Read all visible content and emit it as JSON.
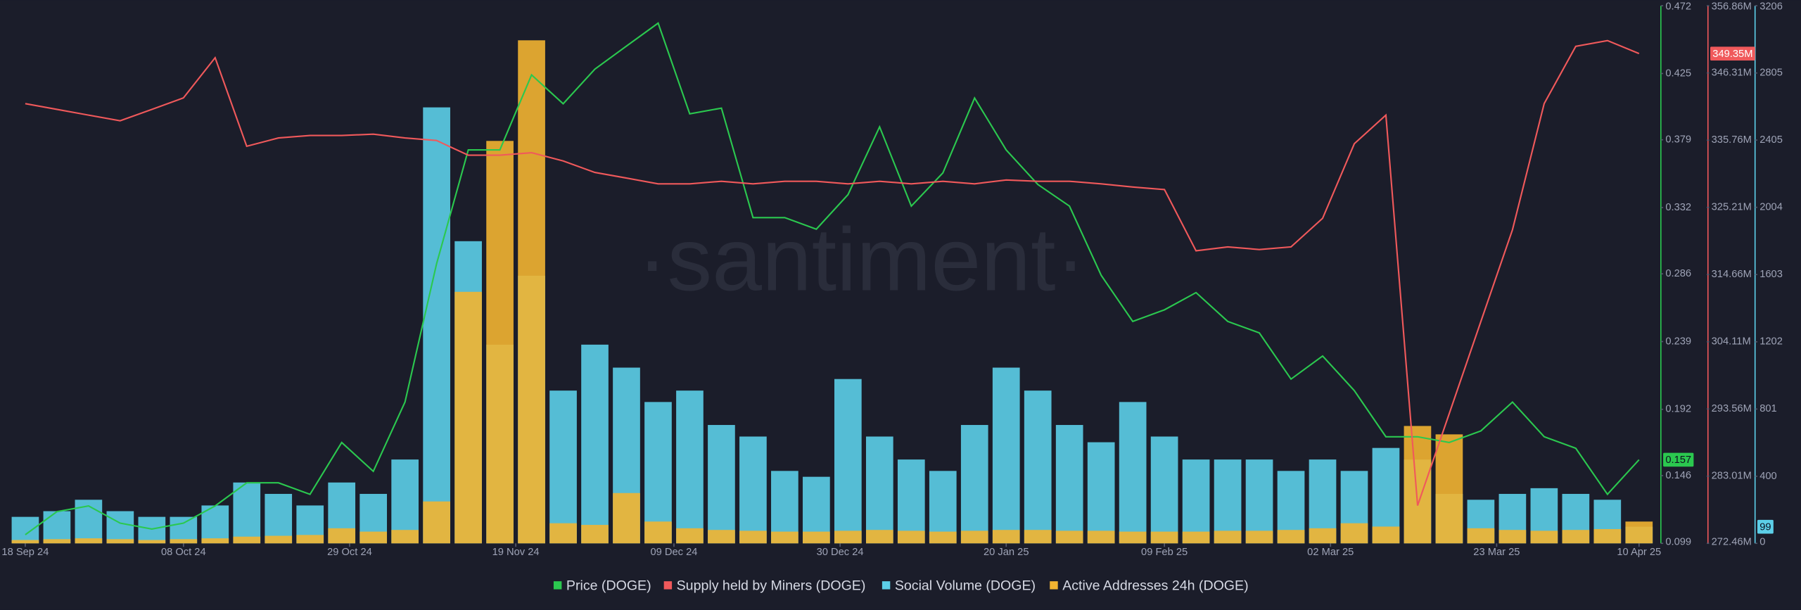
{
  "chart_data": {
    "type": "combo",
    "watermark": "·santiment·",
    "x": [
      "18 Sep 24",
      "22 Sep 24",
      "26 Sep 24",
      "30 Sep 24",
      "04 Oct 24",
      "08 Oct 24",
      "12 Oct 24",
      "16 Oct 24",
      "20 Oct 24",
      "24 Oct 24",
      "28 Oct 24",
      "01 Nov 24",
      "05 Nov 24",
      "09 Nov 24",
      "13 Nov 24",
      "17 Nov 24",
      "21 Nov 24",
      "25 Nov 24",
      "29 Nov 24",
      "03 Dec 24",
      "07 Dec 24",
      "11 Dec 24",
      "15 Dec 24",
      "19 Dec 24",
      "23 Dec 24",
      "27 Dec 24",
      "31 Dec 24",
      "04 Jan 25",
      "08 Jan 25",
      "12 Jan 25",
      "16 Jan 25",
      "20 Jan 25",
      "24 Jan 25",
      "28 Jan 25",
      "01 Feb 25",
      "05 Feb 25",
      "09 Feb 25",
      "13 Feb 25",
      "17 Feb 25",
      "21 Feb 25",
      "25 Feb 25",
      "01 Mar 25",
      "05 Mar 25",
      "09 Mar 25",
      "13 Mar 25",
      "17 Mar 25",
      "21 Mar 25",
      "25 Mar 25",
      "29 Mar 25",
      "02 Apr 25",
      "06 Apr 25",
      "10 Apr 25"
    ],
    "xticks": [
      "18 Sep 24",
      "08 Oct 24",
      "29 Oct 24",
      "19 Nov 24",
      "09 Dec 24",
      "30 Dec 24",
      "20 Jan 25",
      "09 Feb 25",
      "02 Mar 25",
      "23 Mar 25",
      "10 Apr 25"
    ],
    "series": [
      {
        "name": "Price (DOGE)",
        "type": "line",
        "axis": "y",
        "color": "#2bc84f",
        "values": [
          0.105,
          0.121,
          0.125,
          0.113,
          0.109,
          0.113,
          0.125,
          0.141,
          0.141,
          0.133,
          0.169,
          0.149,
          0.197,
          0.293,
          0.372,
          0.372,
          0.424,
          0.404,
          0.428,
          0.444,
          0.46,
          0.397,
          0.401,
          0.325,
          0.325,
          0.317,
          0.341,
          0.388,
          0.333,
          0.356,
          0.408,
          0.372,
          0.348,
          0.333,
          0.285,
          0.253,
          0.261,
          0.273,
          0.253,
          0.245,
          0.213,
          0.229,
          0.205,
          0.173,
          0.173,
          0.169,
          0.177,
          0.197,
          0.173,
          0.165,
          0.133,
          0.157
        ]
      },
      {
        "name": "Supply held by Miners (DOGE)",
        "type": "line",
        "axis": "y2",
        "color": "#f0595b",
        "values": [
          341500000,
          340600000,
          339700000,
          338800000,
          340600000,
          342400000,
          348700000,
          334800000,
          336100000,
          336500000,
          336500000,
          336700000,
          336100000,
          335700000,
          333400000,
          333400000,
          333800000,
          332500000,
          330700000,
          329800000,
          328900000,
          328900000,
          329300000,
          328900000,
          329300000,
          329300000,
          328900000,
          329300000,
          328900000,
          329300000,
          328900000,
          329500000,
          329300000,
          329300000,
          328900000,
          328400000,
          328000000,
          318400000,
          319000000,
          318600000,
          319000000,
          323500000,
          335200000,
          339700000,
          278400000,
          292800000,
          307300000,
          321700000,
          341500000,
          350500000,
          351400000,
          349350000
        ],
        "value_labels": [
          null,
          null,
          null,
          null,
          null,
          null,
          null,
          null,
          null,
          null,
          null,
          null,
          null,
          null,
          null,
          null,
          null,
          null,
          null,
          null,
          null,
          null,
          null,
          null,
          null,
          null,
          null,
          null,
          null,
          null,
          null,
          null,
          null,
          null,
          null,
          null,
          null,
          null,
          null,
          null,
          null,
          null,
          null,
          null,
          null,
          null,
          null,
          null,
          null,
          null,
          null,
          "349.35M"
        ]
      },
      {
        "name": "Social Volume (DOGE)",
        "type": "bar",
        "axis": "y3",
        "color": "#5ccfe8",
        "values": [
          158,
          192,
          260,
          192,
          158,
          158,
          226,
          363,
          295,
          226,
          363,
          295,
          500,
          2600,
          1802,
          1185,
          1596,
          911,
          1185,
          1048,
          843,
          911,
          706,
          637,
          432,
          397,
          980,
          637,
          500,
          432,
          706,
          1048,
          911,
          706,
          603,
          843,
          637,
          500,
          500,
          500,
          432,
          500,
          432,
          569,
          500,
          295,
          260,
          295,
          329,
          295,
          260,
          99
        ]
      },
      {
        "name": "Active Addresses 24h (DOGE)",
        "type": "bar",
        "axis": "y3",
        "color": "#f2b431",
        "values": [
          20,
          25,
          30,
          25,
          20,
          25,
          30,
          40,
          45,
          50,
          90,
          70,
          80,
          250,
          1500,
          2400,
          3000,
          120,
          110,
          300,
          130,
          90,
          80,
          75,
          70,
          70,
          75,
          80,
          75,
          70,
          75,
          80,
          80,
          75,
          75,
          70,
          70,
          70,
          75,
          75,
          80,
          90,
          120,
          100,
          700,
          650,
          90,
          80,
          75,
          80,
          85,
          130
        ]
      }
    ],
    "ylim": [
      0.099,
      0.472
    ],
    "yticks": [
      0.099,
      0.146,
      0.192,
      0.239,
      0.286,
      0.332,
      0.379,
      0.425,
      0.472
    ],
    "y2lim": [
      272460000,
      356860000
    ],
    "y2ticks": [
      {
        "value": 272460000,
        "label": "272.46M"
      },
      {
        "value": 283010000,
        "label": "283.01M"
      },
      {
        "value": 293560000,
        "label": "293.56M"
      },
      {
        "value": 304110000,
        "label": "304.11M"
      },
      {
        "value": 314660000,
        "label": "314.66M"
      },
      {
        "value": 325210000,
        "label": "325.21M"
      },
      {
        "value": 335760000,
        "label": "335.76M"
      },
      {
        "value": 346310000,
        "label": "346.31M"
      },
      {
        "value": 356860000,
        "label": "356.86M"
      }
    ],
    "y3lim": [
      0,
      3206
    ],
    "y3ticks": [
      0,
      400,
      801,
      1202,
      1603,
      2004,
      2405,
      2805,
      3206
    ],
    "legend": "bottom",
    "grid": false
  }
}
